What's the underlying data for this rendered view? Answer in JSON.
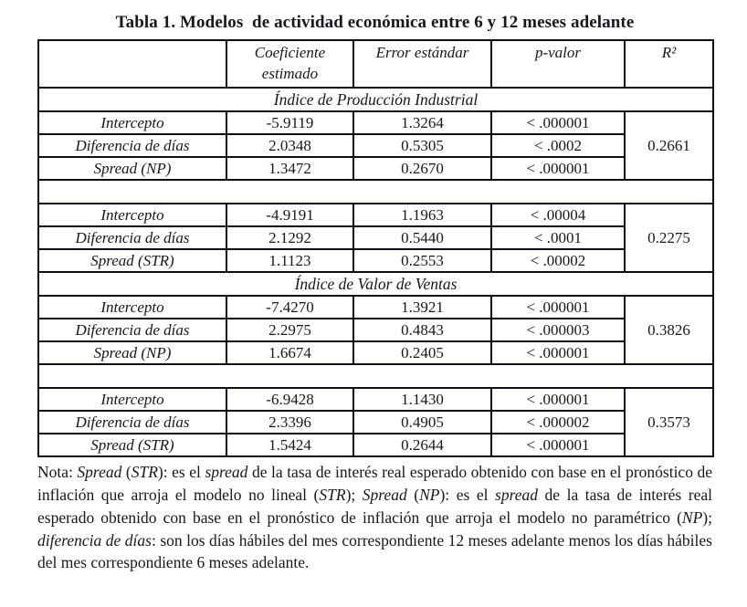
{
  "title": "Tabla 1. Modelos  de actividad económica entre 6 y 12 meses adelante",
  "colors": {
    "background": "#ffffff",
    "text": "#17171f",
    "border": "#0c0c14"
  },
  "table": {
    "headers": {
      "label": "",
      "coef": "Coeficiente estimado",
      "se": "Error estándar",
      "p": "p-valor",
      "r2": "R²"
    },
    "sections": [
      {
        "name": "Índice de Producción Industrial",
        "blocks": [
          {
            "r2": "0.2661",
            "rows": [
              {
                "label": "Intercepto",
                "coef": "-5.9119",
                "se": "1.3264",
                "p": "< .000001"
              },
              {
                "label": "Diferencia de  días",
                "coef": "2.0348",
                "se": "0.5305",
                "p": "< .0002"
              },
              {
                "label": "Spread (NP)",
                "coef": "1.3472",
                "se": "0.2670",
                "p": "< .000001"
              }
            ]
          },
          {
            "r2": "0.2275",
            "rows": [
              {
                "label": "Intercepto",
                "coef": "-4.9191",
                "se": "1.1963",
                "p": "< .00004"
              },
              {
                "label": "Diferencia de días",
                "coef": "2.1292",
                "se": "0.5440",
                "p": "< .0001"
              },
              {
                "label": "Spread (STR)",
                "coef": "1.1123",
                "se": "0.2553",
                "p": "< .00002"
              }
            ]
          }
        ]
      },
      {
        "name": "Índice de Valor de Ventas",
        "blocks": [
          {
            "r2": "0.3826",
            "rows": [
              {
                "label": "Intercepto",
                "coef": "-7.4270",
                "se": "1.3921",
                "p": "< .000001"
              },
              {
                "label": "Diferencia de días",
                "coef": "2.2975",
                "se": "0.4843",
                "p": "< .000003"
              },
              {
                "label": "Spread (NP)",
                "coef": "1.6674",
                "se": "0.2405",
                "p": "< .000001"
              }
            ]
          },
          {
            "r2": "0.3573",
            "rows": [
              {
                "label": "Intercepto",
                "coef": "-6.9428",
                "se": "1.1430",
                "p": "< .000001"
              },
              {
                "label": "Diferencia de días",
                "coef": "2.3396",
                "se": "0.4905",
                "p": "< .000002"
              },
              {
                "label": "Spread (STR)",
                "coef": "1.5424",
                "se": "0.2644",
                "p": "< .000001"
              }
            ]
          }
        ]
      }
    ]
  },
  "note_segments": [
    {
      "t": "Nota: "
    },
    {
      "t": "Spread",
      "i": true
    },
    {
      "t": " ("
    },
    {
      "t": "STR",
      "i": true
    },
    {
      "t": "): es el "
    },
    {
      "t": "spread",
      "i": true
    },
    {
      "t": " de la tasa de interés real esperado obtenido con base en el pronóstico de inflación que arroja el modelo no lineal ("
    },
    {
      "t": "STR",
      "i": true
    },
    {
      "t": "); "
    },
    {
      "t": "Spread",
      "i": true
    },
    {
      "t": " ("
    },
    {
      "t": "NP",
      "i": true
    },
    {
      "t": "): es el "
    },
    {
      "t": "spread",
      "i": true
    },
    {
      "t": " de la tasa de interés real esperado obtenido con base en el pronóstico de inflación que arroja el modelo no paramétrico ("
    },
    {
      "t": "NP",
      "i": true
    },
    {
      "t": "); "
    },
    {
      "t": "diferencia de días",
      "i": true
    },
    {
      "t": ": son los días hábiles del mes correspondiente 12 meses adelante menos los días hábiles del mes correspondiente 6 meses adelante."
    }
  ]
}
